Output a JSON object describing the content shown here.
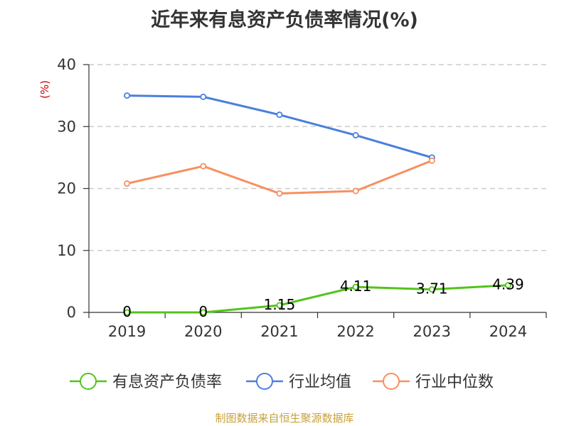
{
  "title": "近年来有息资产负债率情况(%)",
  "source": "制图数据来自恒生聚源数据库",
  "chart_data": {
    "type": "line",
    "title": "近年来有息资产负债率情况(%)",
    "ylabel": "(%)",
    "xlabel": "",
    "categories": [
      "2019",
      "2020",
      "2021",
      "2022",
      "2023",
      "2024"
    ],
    "ylim": [
      0,
      40
    ],
    "yticks": [
      "0",
      "10",
      "20",
      "30",
      "40"
    ],
    "grid": true,
    "legend_position": "bottom",
    "series": [
      {
        "name": "有息资产负债率",
        "color": "#52c41a",
        "values": [
          0,
          0,
          1.15,
          4.11,
          3.71,
          4.39
        ],
        "labels": [
          "0",
          "0",
          "1.15",
          "4.11",
          "3.71",
          "4.39"
        ]
      },
      {
        "name": "行业均值",
        "color": "#4a7fdc",
        "values": [
          35.0,
          34.8,
          31.9,
          28.6,
          25.0,
          null
        ]
      },
      {
        "name": "行业中位数",
        "color": "#f79060",
        "values": [
          20.8,
          23.6,
          19.2,
          19.6,
          24.5,
          null
        ]
      }
    ]
  }
}
